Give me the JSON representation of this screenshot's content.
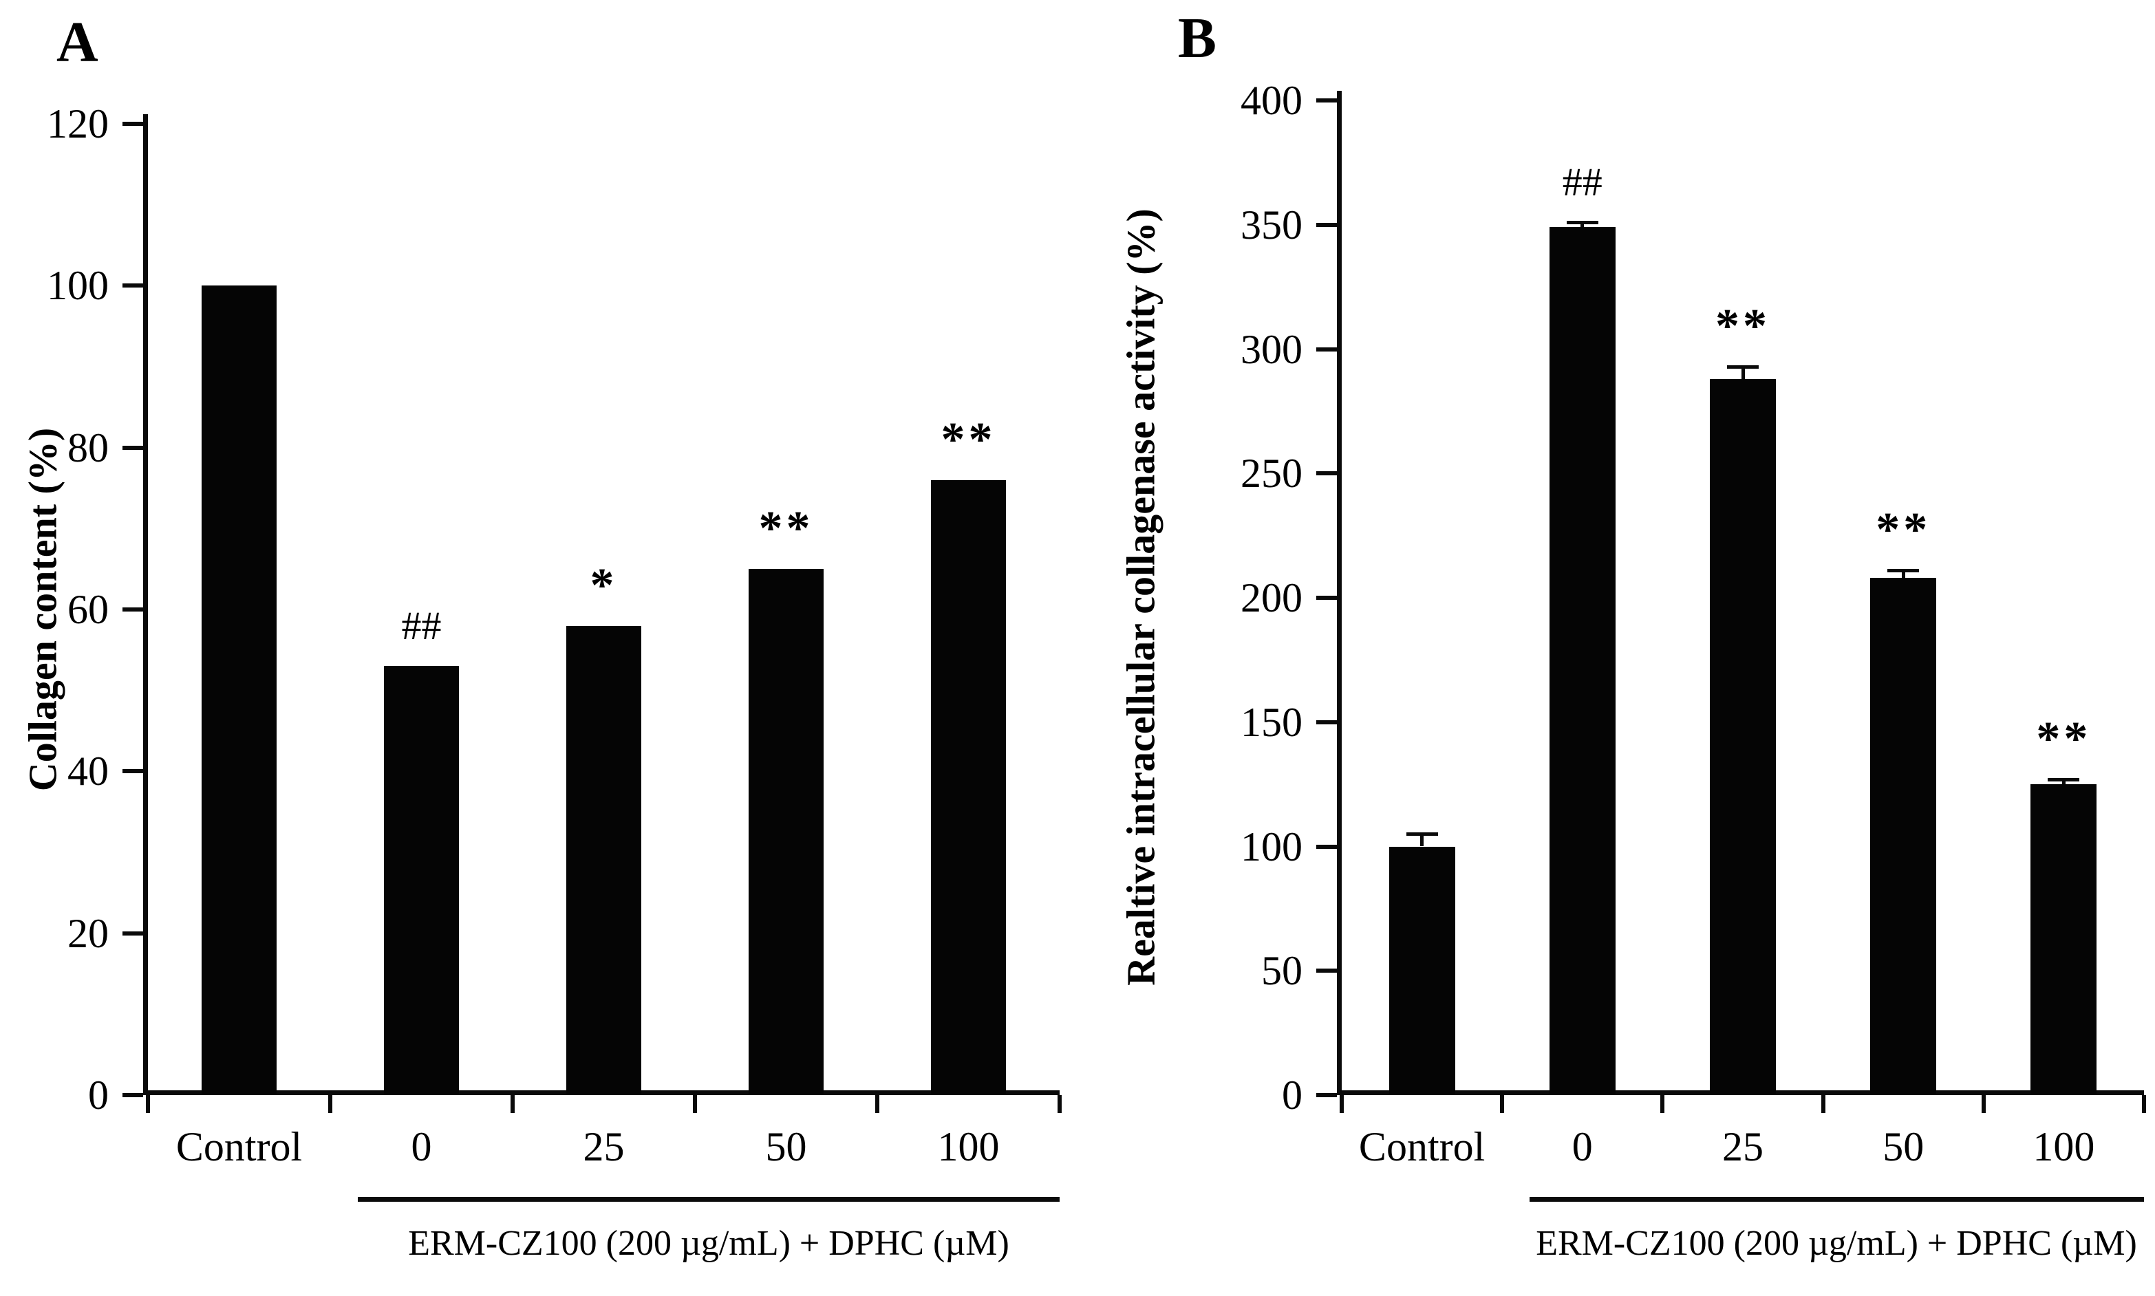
{
  "figure": {
    "type": "scientific-two-panel-bar-figure",
    "background_color": "#ffffff",
    "bar_color": "#050505",
    "text_color": "#000000"
  },
  "chart_data": [
    {
      "type": "bar",
      "panel_label": "A",
      "title": "",
      "ylabel": "Collagen content (%)",
      "categories": [
        "Control",
        "0",
        "25",
        "50",
        "100"
      ],
      "values": [
        100,
        53,
        58,
        65,
        76
      ],
      "errors": [
        0,
        0,
        0,
        0,
        0
      ],
      "annotations": [
        "",
        "##",
        "*",
        "**",
        "**"
      ],
      "ylim": [
        0,
        120
      ],
      "yticks": [
        0,
        20,
        40,
        60,
        80,
        100,
        120
      ],
      "grid": false,
      "legend_position": "none",
      "xlabel_group": "ERM-CZ100 (200 µg/mL) + DPHC (µM)",
      "group_categories": [
        "0",
        "25",
        "50",
        "100"
      ]
    },
    {
      "type": "bar",
      "panel_label": "B",
      "title": "",
      "ylabel": "Realtive intracellular collagenase activity (%)",
      "categories": [
        "Control",
        "0",
        "25",
        "50",
        "100"
      ],
      "values": [
        100,
        349,
        288,
        208,
        125
      ],
      "errors": [
        5,
        2,
        5,
        3,
        2
      ],
      "annotations": [
        "",
        "##",
        "**",
        "**",
        "**"
      ],
      "ylim": [
        0,
        400
      ],
      "yticks": [
        0,
        50,
        100,
        150,
        200,
        250,
        300,
        350,
        400
      ],
      "grid": false,
      "legend_position": "none",
      "xlabel_group": "ERM-CZ100 (200 µg/mL) + DPHC (µM)",
      "group_categories": [
        "0",
        "25",
        "50",
        "100"
      ]
    }
  ]
}
